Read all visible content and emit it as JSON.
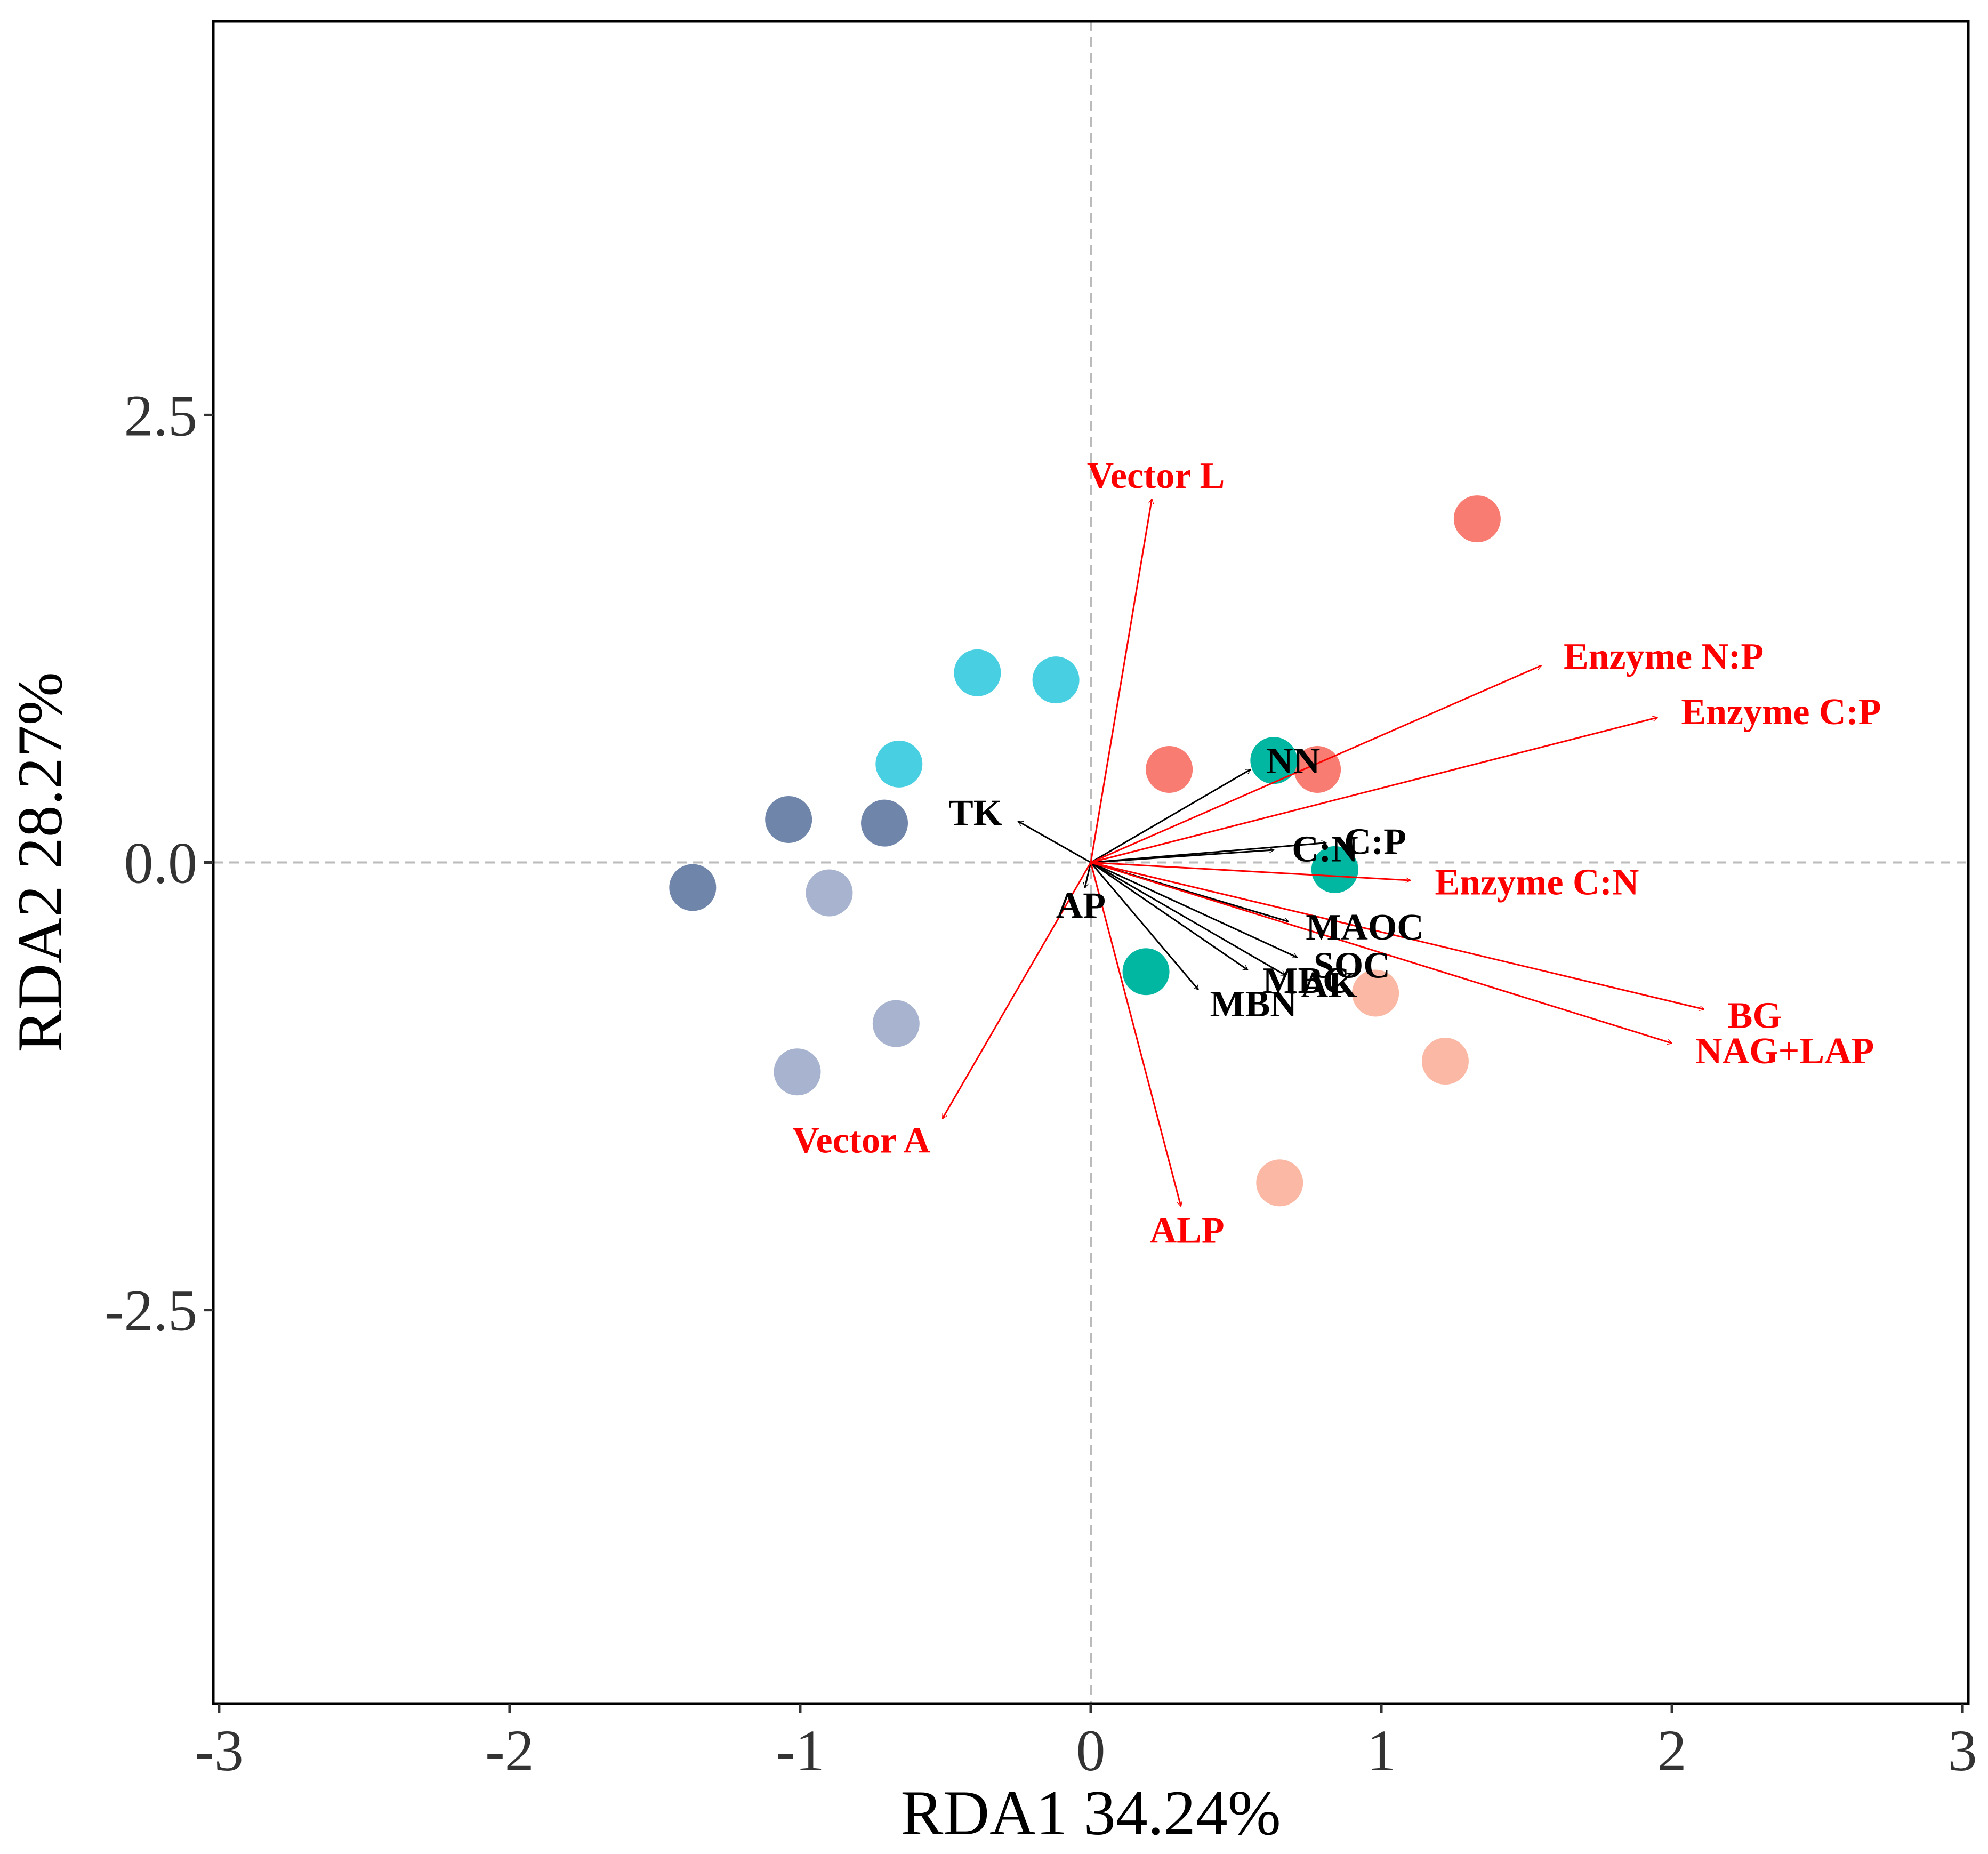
{
  "chart_data": {
    "type": "scatter",
    "xlabel": "RDA1 34.24%",
    "ylabel": "RDA2 28.27%",
    "xlim": [
      -3.02,
      3.02
    ],
    "ylim": [
      -4.7,
      4.7
    ],
    "xticks": [
      -3,
      -2,
      -1,
      0,
      1,
      2,
      3
    ],
    "yticks": [
      -2.5,
      0.0,
      2.5
    ],
    "xtick_labels": [
      "-3",
      "-2",
      "-1",
      "0",
      "1",
      "2",
      "3"
    ],
    "ytick_labels": [
      "-2.5",
      "0.0",
      "2.5"
    ],
    "reference_lines": {
      "x": 0,
      "y": 0
    },
    "grid": false,
    "points": [
      {
        "x": 1.33,
        "y": 1.92,
        "color": "#f87c72"
      },
      {
        "x": 0.78,
        "y": 0.52,
        "color": "#f87c72"
      },
      {
        "x": 0.27,
        "y": 0.52,
        "color": "#f87c72"
      },
      {
        "x": 1.22,
        "y": -1.11,
        "color": "#fbb9a5"
      },
      {
        "x": 0.98,
        "y": -0.73,
        "color": "#fbb9a5"
      },
      {
        "x": 0.65,
        "y": -1.79,
        "color": "#fbb9a5"
      },
      {
        "x": 0.63,
        "y": 0.57,
        "color": "#02b7a2"
      },
      {
        "x": 0.84,
        "y": -0.04,
        "color": "#02b7a2"
      },
      {
        "x": 0.19,
        "y": -0.61,
        "color": "#02b7a2"
      },
      {
        "x": -0.39,
        "y": 1.06,
        "color": "#49cfe2"
      },
      {
        "x": -0.12,
        "y": 1.02,
        "color": "#49cfe2"
      },
      {
        "x": -0.66,
        "y": 0.55,
        "color": "#49cfe2"
      },
      {
        "x": -1.04,
        "y": 0.24,
        "color": "#6f85aa"
      },
      {
        "x": -0.71,
        "y": 0.22,
        "color": "#6f85aa"
      },
      {
        "x": -1.37,
        "y": -0.14,
        "color": "#6f85aa"
      },
      {
        "x": -0.9,
        "y": -0.17,
        "color": "#a7b3cf"
      },
      {
        "x": -0.67,
        "y": -0.9,
        "color": "#a7b3cf"
      },
      {
        "x": -1.01,
        "y": -1.17,
        "color": "#a7b3cf"
      }
    ],
    "env_vectors": [
      {
        "name": "TK",
        "x": -0.25,
        "y": 0.23
      },
      {
        "name": "AP",
        "x": -0.02,
        "y": -0.14
      },
      {
        "name": "NN",
        "x": 0.55,
        "y": 0.52
      },
      {
        "name": "C:N",
        "x": 0.63,
        "y": 0.07
      },
      {
        "name": "C:P",
        "x": 0.81,
        "y": 0.11
      },
      {
        "name": "MAOC",
        "x": 0.68,
        "y": -0.33
      },
      {
        "name": "SOC",
        "x": 0.71,
        "y": -0.53
      },
      {
        "name": "AK",
        "x": 0.67,
        "y": -0.63
      },
      {
        "name": "MBC",
        "x": 0.54,
        "y": -0.6
      },
      {
        "name": "MBN",
        "x": 0.37,
        "y": -0.71
      }
    ],
    "response_vectors": [
      {
        "name": "Vector L",
        "x": 0.21,
        "y": 2.03
      },
      {
        "name": "Enzyme N:P",
        "x": 1.55,
        "y": 1.1
      },
      {
        "name": "Enzyme C:P",
        "x": 1.95,
        "y": 0.81
      },
      {
        "name": "Enzyme C:N",
        "x": 1.1,
        "y": -0.1
      },
      {
        "name": "BG",
        "x": 2.11,
        "y": -0.82
      },
      {
        "name": "NAG+LAP",
        "x": 2.0,
        "y": -1.01
      },
      {
        "name": "ALP",
        "x": 0.31,
        "y": -1.92
      },
      {
        "name": "Vector A",
        "x": -0.51,
        "y": -1.43
      }
    ],
    "colors": {
      "env_vector": "#000000",
      "response_vector": "#ff0000",
      "reference_line": "#bbbbbb",
      "frame": "#000000"
    }
  }
}
